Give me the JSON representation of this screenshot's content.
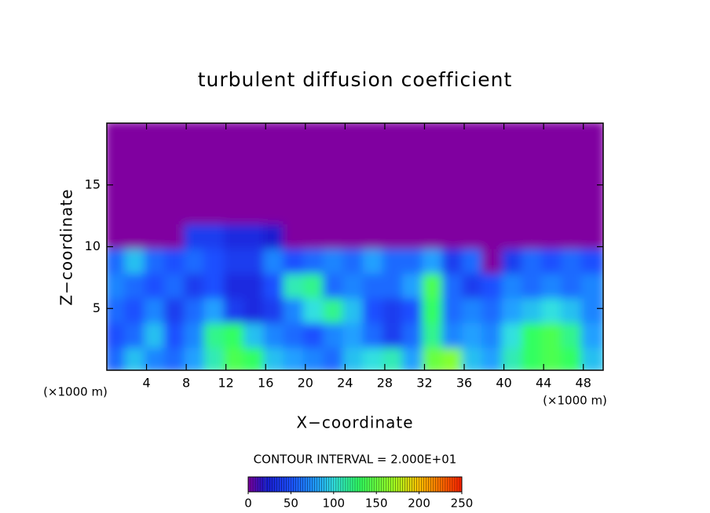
{
  "chart_data": {
    "type": "contour",
    "title": "turbulent diffusion coefficient",
    "xlabel": "X−coordinate",
    "ylabel": "Z−coordinate",
    "x_unit": "(×1000 m)",
    "contour_interval": "CONTOUR INTERVAL = 2.000E+01",
    "xlim": [
      0,
      50
    ],
    "ylim": [
      0,
      20
    ],
    "xticks": [
      4,
      8,
      12,
      16,
      20,
      24,
      28,
      32,
      36,
      40,
      44,
      48
    ],
    "yticks": [
      5,
      10,
      15
    ],
    "x": [
      1,
      3,
      5,
      7,
      9,
      11,
      13,
      15,
      17,
      19,
      21,
      23,
      25,
      27,
      29,
      31,
      33,
      35,
      37,
      39,
      41,
      43,
      45,
      47,
      49
    ],
    "y": [
      1,
      3,
      5,
      7,
      9,
      11,
      13,
      15,
      17,
      19
    ],
    "z": [
      [
        60,
        90,
        70,
        60,
        80,
        110,
        140,
        130,
        90,
        80,
        70,
        60,
        90,
        100,
        110,
        80,
        150,
        160,
        90,
        80,
        110,
        130,
        140,
        130,
        90
      ],
      [
        50,
        60,
        90,
        50,
        70,
        120,
        130,
        90,
        70,
        60,
        50,
        70,
        80,
        60,
        40,
        60,
        120,
        70,
        80,
        70,
        100,
        130,
        140,
        120,
        80
      ],
      [
        60,
        50,
        70,
        40,
        60,
        80,
        40,
        30,
        40,
        70,
        100,
        120,
        90,
        50,
        40,
        50,
        130,
        60,
        70,
        60,
        80,
        90,
        100,
        90,
        70
      ],
      [
        70,
        60,
        50,
        60,
        40,
        50,
        30,
        30,
        50,
        110,
        120,
        60,
        70,
        60,
        60,
        80,
        140,
        60,
        40,
        50,
        70,
        60,
        70,
        60,
        70
      ],
      [
        60,
        90,
        60,
        50,
        60,
        50,
        40,
        40,
        70,
        50,
        60,
        70,
        60,
        80,
        60,
        60,
        80,
        40,
        60,
        0,
        40,
        60,
        50,
        60,
        50
      ],
      [
        0,
        0,
        0,
        0,
        40,
        40,
        30,
        30,
        20,
        0,
        0,
        0,
        0,
        0,
        0,
        0,
        0,
        0,
        0,
        0,
        0,
        0,
        0,
        0,
        0
      ],
      [
        0,
        0,
        0,
        0,
        0,
        0,
        0,
        0,
        0,
        0,
        0,
        0,
        0,
        0,
        0,
        0,
        0,
        0,
        0,
        0,
        0,
        0,
        0,
        0,
        0
      ],
      [
        0,
        0,
        0,
        0,
        0,
        0,
        0,
        0,
        0,
        0,
        0,
        0,
        0,
        0,
        0,
        0,
        0,
        0,
        0,
        0,
        0,
        0,
        0,
        0,
        0
      ],
      [
        0,
        0,
        0,
        0,
        0,
        0,
        0,
        0,
        0,
        0,
        0,
        0,
        0,
        0,
        0,
        0,
        0,
        0,
        0,
        0,
        0,
        0,
        0,
        0,
        0
      ],
      [
        0,
        0,
        0,
        0,
        0,
        0,
        0,
        0,
        0,
        0,
        0,
        0,
        0,
        0,
        0,
        0,
        0,
        0,
        0,
        0,
        0,
        0,
        0,
        0,
        0
      ]
    ],
    "colormap": [
      {
        "value": 0,
        "color": "#8000a0"
      },
      {
        "value": 20,
        "color": "#1a1ad0"
      },
      {
        "value": 50,
        "color": "#1a50ff"
      },
      {
        "value": 80,
        "color": "#20a0ff"
      },
      {
        "value": 100,
        "color": "#30e0e0"
      },
      {
        "value": 130,
        "color": "#30ff60"
      },
      {
        "value": 170,
        "color": "#a0ff20"
      },
      {
        "value": 200,
        "color": "#ffc000"
      },
      {
        "value": 250,
        "color": "#ff2000"
      }
    ],
    "cblim": [
      0,
      250
    ],
    "cbticks": [
      0,
      50,
      100,
      150,
      200,
      250
    ]
  }
}
